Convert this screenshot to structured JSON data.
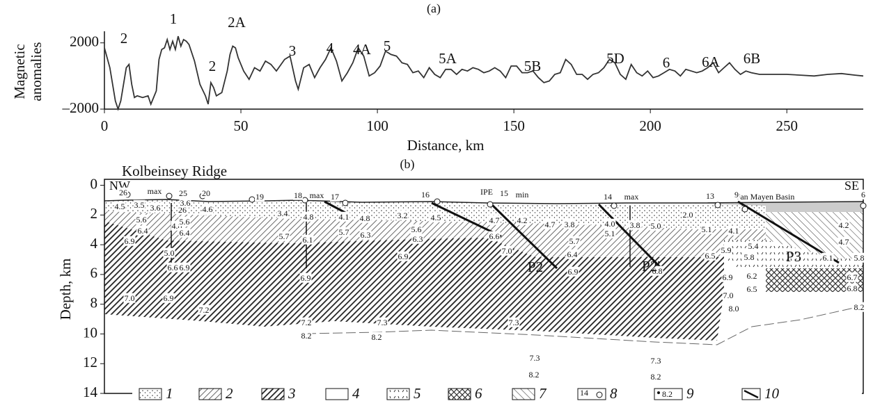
{
  "chart_data": [
    {
      "type": "line",
      "title": "(a)",
      "x_label": "Distance, km",
      "y_label": [
        "Magnetic",
        "anomalies"
      ],
      "x": [
        0,
        2,
        4,
        5,
        6,
        8,
        9,
        10,
        11,
        12,
        14,
        16,
        17,
        19,
        20,
        21,
        22,
        23,
        24,
        25,
        26,
        27,
        28,
        29,
        30,
        31,
        33,
        35,
        37,
        38,
        39,
        40,
        41,
        43,
        45,
        46,
        47,
        48,
        49,
        51,
        53,
        55,
        57,
        59,
        61,
        63,
        66,
        68,
        70,
        71,
        73,
        75,
        77,
        79,
        81,
        83,
        85,
        87,
        89,
        91,
        93,
        95,
        97,
        99,
        101,
        103,
        105,
        107,
        109,
        111,
        113,
        115,
        117,
        119,
        121,
        123,
        125,
        127,
        129,
        131,
        133,
        135,
        137,
        139,
        141,
        143,
        145,
        147,
        149,
        151,
        153,
        155,
        157,
        159,
        161,
        163,
        165,
        167,
        169,
        171,
        173,
        175,
        177,
        179,
        181,
        183,
        185,
        187,
        189,
        191,
        193,
        195,
        197,
        199,
        201,
        203,
        205,
        207,
        209,
        211,
        213,
        215,
        217,
        219,
        221,
        223,
        225,
        227,
        229,
        231,
        233,
        235,
        237,
        240,
        245,
        250,
        255,
        260,
        265,
        270,
        275,
        278
      ],
      "series": [
        {
          "color": "#333333",
          "values": [
            1700,
            500,
            -1500,
            -2000,
            -1500,
            500,
            700,
            -500,
            -1300,
            -1200,
            -1300,
            -1200,
            -1700,
            -900,
            1000,
            1600,
            1700,
            2200,
            1600,
            2100,
            1600,
            2400,
            1800,
            2200,
            2100,
            1900,
            900,
            -500,
            -1200,
            -1700,
            -400,
            -700,
            -1200,
            -1000,
            300,
            1300,
            1800,
            1700,
            1100,
            300,
            -200,
            500,
            300,
            900,
            700,
            300,
            1000,
            1200,
            -300,
            -800,
            500,
            700,
            -100,
            500,
            1000,
            1700,
            900,
            -300,
            200,
            800,
            1700,
            1200,
            0,
            200,
            600,
            1500,
            1300,
            1200,
            800,
            700,
            200,
            300,
            -100,
            500,
            100,
            -100,
            400,
            400,
            100,
            400,
            300,
            500,
            400,
            200,
            300,
            500,
            300,
            -100,
            600,
            600,
            200,
            200,
            300,
            -100,
            -400,
            -300,
            100,
            200,
            1000,
            700,
            100,
            100,
            -200,
            100,
            200,
            500,
            1000,
            800,
            100,
            -200,
            700,
            200,
            0,
            300,
            -100,
            0,
            200,
            400,
            300,
            0,
            400,
            300,
            200,
            300,
            500,
            800,
            200,
            500,
            800,
            400,
            100,
            300,
            200,
            100,
            100,
            100,
            50,
            0,
            100,
            150,
            50,
            0
          ]
        }
      ],
      "xlim": [
        0,
        278
      ],
      "ylim": [
        -2000,
        2700
      ],
      "xticks": [
        0,
        50,
        100,
        150,
        200,
        250
      ],
      "yticks": [
        {
          "value": -2000,
          "label": "–2000"
        },
        2000
      ],
      "annotations": [
        "2",
        "1",
        "2A",
        "2",
        "3",
        "4",
        "4A",
        "5",
        "5A",
        "5B",
        "5D",
        "6",
        "6A",
        "6B"
      ]
    },
    {
      "type": "cross-section",
      "title": "(b)",
      "y_label": "Depth, km",
      "ylim": [
        -0.4,
        14
      ],
      "yticks": [
        0,
        2,
        4,
        6,
        8,
        10,
        12,
        14
      ],
      "labels": [
        "NW",
        "Kolbeinsey Ridge",
        "SE",
        "Jan Mayen Basin",
        "26",
        "max",
        "25",
        "20",
        "19",
        "18",
        "max",
        "17",
        "16",
        "IPE",
        "15",
        "min",
        "14",
        "max",
        "13",
        "9",
        "6",
        "4.5",
        "3.5",
        "3.6",
        "26",
        "3.6",
        "4.6",
        "5.6",
        "6.4",
        "6.9",
        "4.8",
        "5.6",
        "6.4",
        "5.0",
        "6.6",
        "6.9",
        "3.4",
        "4.8",
        "5.7",
        "6.1",
        "6.9",
        "4.1",
        "4.8",
        "5.7",
        "6.3",
        "3.2",
        "4.5",
        "5.6",
        "6.3",
        "6.9",
        "4.7",
        "4.2",
        "4.7",
        "3.8",
        "6.6",
        "7.0",
        "5.7",
        "6.4",
        "6.9",
        "4.0",
        "3.8",
        "5.1",
        "5.0",
        "2.0",
        "6.8",
        "5.1",
        "4.1",
        "5.4",
        "5.9",
        "6.5",
        "5.8",
        "6.1",
        "5.8",
        "4.2",
        "4.7",
        "6.9",
        "6.2",
        "6.7",
        "6.5",
        "6.8",
        "7.0",
        "8.0",
        "8.2",
        "7.0",
        "6.9",
        "7.2",
        "7.2",
        "8.2",
        "7.3",
        "8.2",
        "7.3",
        "7.3",
        "8.2",
        "7.3",
        "8.2",
        "P2",
        "P2'",
        "P3"
      ],
      "legend": [
        "1",
        "2",
        "3",
        "4",
        "5",
        "6",
        "7",
        "8",
        "9",
        "10"
      ],
      "legend_symbols": [
        "14",
        "8.2"
      ]
    }
  ]
}
